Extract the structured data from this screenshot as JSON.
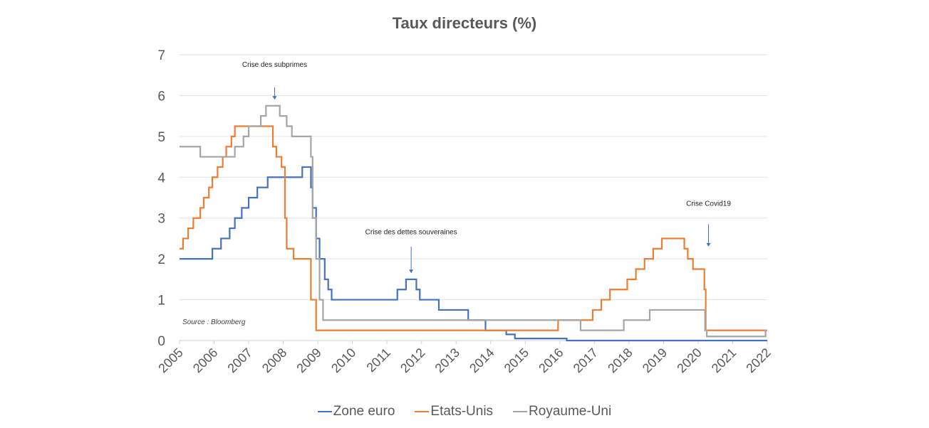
{
  "chart_data": {
    "type": "line",
    "title": "Taux directeurs (%)",
    "xlabel": "",
    "ylabel": "",
    "xlim": [
      2005,
      2022
    ],
    "ylim": [
      0,
      7
    ],
    "y_ticks": [
      0,
      1,
      2,
      3,
      4,
      5,
      6,
      7
    ],
    "x_ticks": [
      "2005",
      "2006",
      "2007",
      "2008",
      "2009",
      "2010",
      "2011",
      "2012",
      "2013",
      "2014",
      "2015",
      "2016",
      "2017",
      "2018",
      "2019",
      "2020",
      "2021",
      "2022"
    ],
    "grid": true,
    "legend_position": "bottom",
    "step": true,
    "series": [
      {
        "name": "Zone euro",
        "color": "#4472C4",
        "points": [
          [
            2005.0,
            2.0
          ],
          [
            2005.95,
            2.25
          ],
          [
            2006.2,
            2.5
          ],
          [
            2006.45,
            2.75
          ],
          [
            2006.6,
            3.0
          ],
          [
            2006.8,
            3.25
          ],
          [
            2007.0,
            3.5
          ],
          [
            2007.25,
            3.75
          ],
          [
            2007.55,
            4.0
          ],
          [
            2008.55,
            4.25
          ],
          [
            2008.8,
            3.75
          ],
          [
            2008.85,
            3.25
          ],
          [
            2008.95,
            2.5
          ],
          [
            2009.05,
            2.0
          ],
          [
            2009.2,
            1.5
          ],
          [
            2009.3,
            1.25
          ],
          [
            2009.4,
            1.0
          ],
          [
            2011.3,
            1.25
          ],
          [
            2011.55,
            1.5
          ],
          [
            2011.85,
            1.25
          ],
          [
            2011.95,
            1.0
          ],
          [
            2012.5,
            0.75
          ],
          [
            2013.35,
            0.5
          ],
          [
            2013.85,
            0.25
          ],
          [
            2014.45,
            0.15
          ],
          [
            2014.7,
            0.05
          ],
          [
            2016.2,
            0.0
          ],
          [
            2022.0,
            0.0
          ]
        ]
      },
      {
        "name": "Etats-Unis",
        "color": "#ED7D31",
        "points": [
          [
            2005.0,
            2.25
          ],
          [
            2005.1,
            2.5
          ],
          [
            2005.25,
            2.75
          ],
          [
            2005.4,
            3.0
          ],
          [
            2005.6,
            3.25
          ],
          [
            2005.7,
            3.5
          ],
          [
            2005.85,
            3.75
          ],
          [
            2005.95,
            4.0
          ],
          [
            2006.1,
            4.25
          ],
          [
            2006.25,
            4.5
          ],
          [
            2006.35,
            4.75
          ],
          [
            2006.5,
            5.0
          ],
          [
            2006.6,
            5.25
          ],
          [
            2007.7,
            4.75
          ],
          [
            2007.8,
            4.5
          ],
          [
            2007.95,
            4.25
          ],
          [
            2008.05,
            3.0
          ],
          [
            2008.1,
            2.25
          ],
          [
            2008.3,
            2.0
          ],
          [
            2008.8,
            1.0
          ],
          [
            2008.95,
            0.25
          ],
          [
            2015.95,
            0.5
          ],
          [
            2016.95,
            0.75
          ],
          [
            2017.2,
            1.0
          ],
          [
            2017.45,
            1.25
          ],
          [
            2017.95,
            1.5
          ],
          [
            2018.2,
            1.75
          ],
          [
            2018.45,
            2.0
          ],
          [
            2018.7,
            2.25
          ],
          [
            2018.95,
            2.5
          ],
          [
            2019.6,
            2.25
          ],
          [
            2019.7,
            2.0
          ],
          [
            2019.85,
            1.75
          ],
          [
            2020.18,
            1.25
          ],
          [
            2020.22,
            0.25
          ],
          [
            2022.0,
            0.25
          ]
        ]
      },
      {
        "name": "Royaume-Uni",
        "color": "#A5A5A5",
        "points": [
          [
            2005.0,
            4.75
          ],
          [
            2005.6,
            4.5
          ],
          [
            2006.6,
            4.75
          ],
          [
            2006.85,
            5.0
          ],
          [
            2007.0,
            5.25
          ],
          [
            2007.35,
            5.5
          ],
          [
            2007.5,
            5.75
          ],
          [
            2007.9,
            5.5
          ],
          [
            2008.1,
            5.25
          ],
          [
            2008.25,
            5.0
          ],
          [
            2008.8,
            4.5
          ],
          [
            2008.85,
            3.0
          ],
          [
            2008.95,
            2.0
          ],
          [
            2009.05,
            1.0
          ],
          [
            2009.15,
            0.5
          ],
          [
            2016.6,
            0.25
          ],
          [
            2017.85,
            0.5
          ],
          [
            2018.6,
            0.75
          ],
          [
            2020.2,
            0.25
          ],
          [
            2020.25,
            0.1
          ],
          [
            2021.95,
            0.25
          ],
          [
            2022.0,
            0.25
          ]
        ]
      }
    ],
    "annotations": [
      {
        "text": "Crise des subprimes",
        "x": 2007.75,
        "text_y": 6.7,
        "arrow_from": 6.2,
        "arrow_to": 5.9
      },
      {
        "text": "Crise des dettes souveraines",
        "x": 2011.7,
        "text_y": 2.6,
        "arrow_from": 2.3,
        "arrow_to": 1.65
      },
      {
        "text": "Crise Covid19",
        "x": 2020.3,
        "text_y": 3.3,
        "arrow_from": 2.85,
        "arrow_to": 2.3
      }
    ],
    "source_note": "Source : Bloomberg"
  }
}
